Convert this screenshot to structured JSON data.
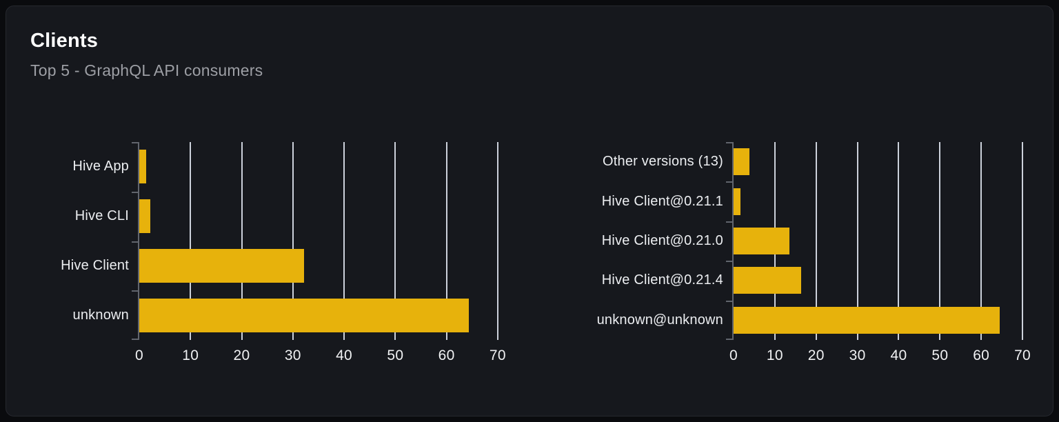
{
  "panel": {
    "title": "Clients",
    "subtitle": "Top 5 - GraphQL API consumers"
  },
  "colors": {
    "canvas_bg": "#0a0b0e",
    "panel_bg": "#16181d",
    "panel_border": "#26282e",
    "title": "#ffffff",
    "subtitle": "#9d9fa5",
    "label": "#eceef1",
    "tick_label": "#f0f1f3",
    "axis": "#61656d",
    "gridline": "#dde3ed",
    "bar": "#e7b20c"
  },
  "chart_data": [
    {
      "type": "bar",
      "orientation": "horizontal",
      "title": "",
      "xlabel": "",
      "ylabel": "",
      "categories": [
        "Hive App",
        "Hive CLI",
        "Hive Client",
        "unknown"
      ],
      "values": [
        1.4,
        2.1,
        32.2,
        64.3
      ],
      "xlim": [
        0,
        75
      ],
      "x_ticks": [
        0,
        10,
        20,
        30,
        40,
        50,
        60,
        70
      ],
      "grid": true,
      "legend": "none",
      "bar_color": "#e7b20c"
    },
    {
      "type": "bar",
      "orientation": "horizontal",
      "title": "",
      "xlabel": "",
      "ylabel": "",
      "categories": [
        "Other versions (13)",
        "Hive Client@0.21.1",
        "Hive Client@0.21.0",
        "Hive Client@0.21.4",
        "unknown@unknown"
      ],
      "values": [
        3.9,
        1.6,
        13.6,
        16.4,
        64.5
      ],
      "xlim": [
        0,
        75
      ],
      "x_ticks": [
        0,
        10,
        20,
        30,
        40,
        50,
        60,
        70
      ],
      "grid": true,
      "legend": "none",
      "bar_color": "#e7b20c"
    }
  ]
}
